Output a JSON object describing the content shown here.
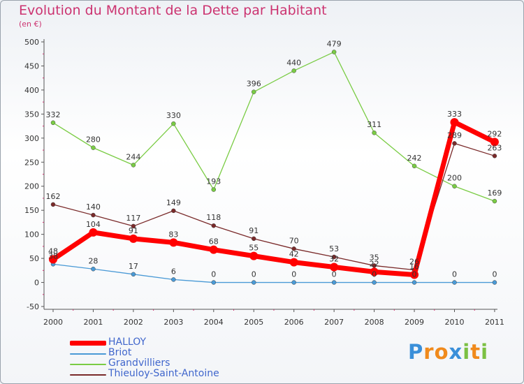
{
  "title": "Evolution du Montant de la Dette par Habitant",
  "subtitle": "(en €)",
  "logo_text": "Proxiti",
  "colors": {
    "title": "#cc3370",
    "legend_text": "#4066cc",
    "axis": "#555555",
    "tick_marks": "#cc3370"
  },
  "chart_data": {
    "type": "line",
    "categories": [
      "2000",
      "2001",
      "2002",
      "2003",
      "2004",
      "2005",
      "2006",
      "2007",
      "2008",
      "2009",
      "2010",
      "2011"
    ],
    "ylim": [
      -50,
      500
    ],
    "yticks": [
      -50,
      0,
      50,
      100,
      150,
      200,
      250,
      300,
      350,
      400,
      450,
      500
    ],
    "grid": false,
    "legend_position": "bottom-left",
    "series": [
      {
        "name": "HALLOY",
        "color": "#ff0000",
        "values": [
          48,
          104,
          91,
          83,
          68,
          55,
          42,
          32,
          22,
          16,
          333,
          292
        ],
        "labels": [
          "48",
          "104",
          "91",
          "83",
          "68",
          "55",
          "42",
          "32",
          "22",
          "16",
          "333",
          "292"
        ]
      },
      {
        "name": "Briot",
        "color": "#4a9ad6",
        "values": [
          38,
          28,
          17,
          6,
          0,
          0,
          0,
          0,
          0,
          0,
          0,
          0
        ],
        "labels": [
          "38",
          "28",
          "17",
          "6",
          "0",
          "0",
          "0",
          "0",
          "0",
          "0",
          "0",
          "0"
        ]
      },
      {
        "name": "Grandvilliers",
        "color": "#7acc44",
        "values": [
          332,
          280,
          244,
          330,
          193,
          396,
          440,
          479,
          311,
          242,
          200,
          169
        ],
        "labels": [
          "332",
          "280",
          "244",
          "330",
          "193",
          "396",
          "440",
          "479",
          "311",
          "242",
          "200",
          "169"
        ]
      },
      {
        "name": "Thieuloy-Saint-Antoine",
        "color": "#7a2a2a",
        "values": [
          162,
          140,
          117,
          149,
          118,
          91,
          70,
          53,
          35,
          26,
          289,
          263
        ],
        "labels": [
          "162",
          "140",
          "117",
          "149",
          "118",
          "91",
          "70",
          "53",
          "35",
          "26",
          "289",
          "263"
        ]
      }
    ]
  }
}
